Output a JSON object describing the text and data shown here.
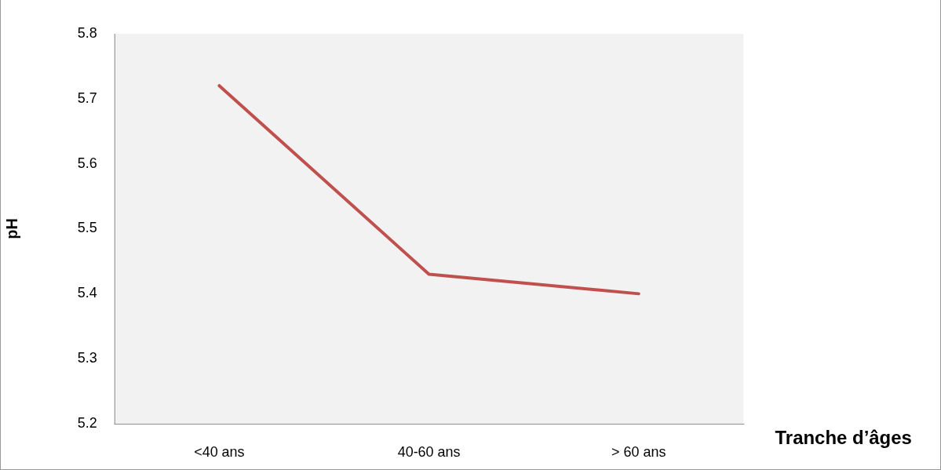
{
  "chart_data": {
    "type": "line",
    "categories": [
      "<40 ans",
      "40-60 ans",
      "> 60 ans"
    ],
    "series": [
      {
        "color": "#c0504d",
        "values": [
          5.72,
          5.43,
          5.4
        ]
      }
    ],
    "xlabel": "Tranche d’âges",
    "ylabel": "pH",
    "ylim": [
      5.2,
      5.8
    ],
    "yticks": [
      5.2,
      5.3,
      5.4,
      5.5,
      5.6,
      5.7,
      5.8
    ],
    "grid": false,
    "legend": false,
    "marker": "none",
    "line_style": "solid"
  }
}
